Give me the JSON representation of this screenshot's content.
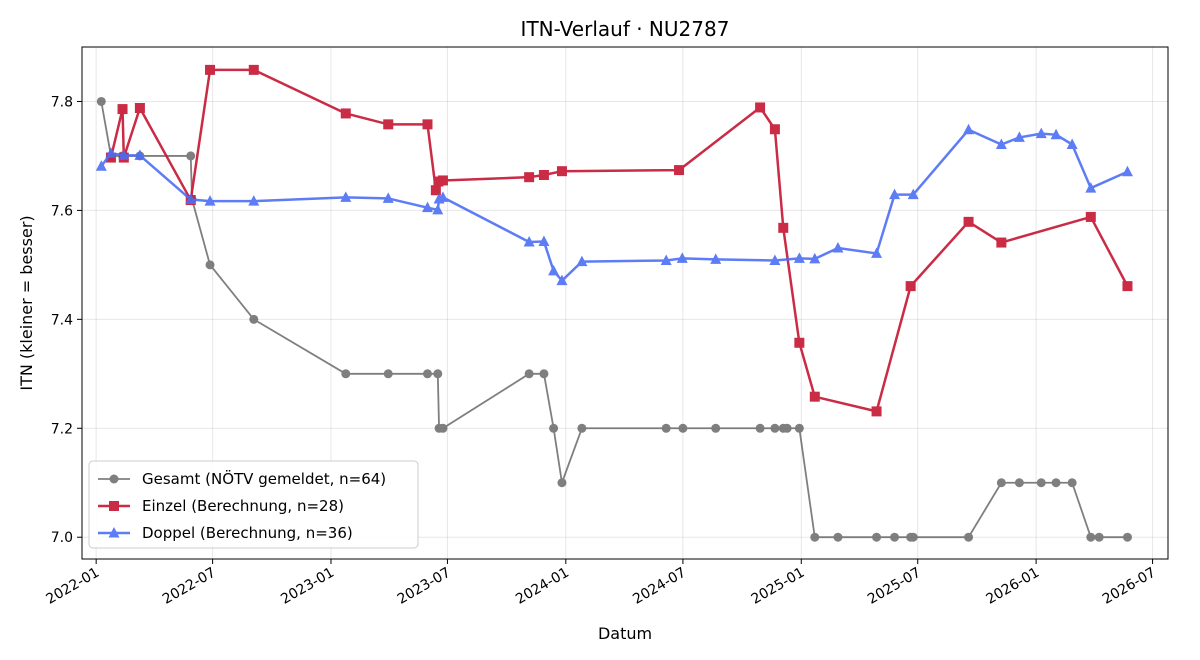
{
  "chart_data": {
    "type": "line",
    "title": "ITN-Verlauf · NU2787",
    "xlabel": "Datum",
    "ylabel": "ITN  (kleiner = besser)",
    "x_type": "date",
    "xlim": [
      "2021-12-10",
      "2026-07-25"
    ],
    "ylim": [
      6.96,
      7.9
    ],
    "x_ticks": [
      "2022-01",
      "2022-07",
      "2023-01",
      "2023-07",
      "2024-01",
      "2024-07",
      "2025-01",
      "2025-07",
      "2026-01",
      "2026-07"
    ],
    "y_ticks": [
      7.0,
      7.2,
      7.4,
      7.6,
      7.8
    ],
    "y_tick_labels": [
      "7.0",
      "7.2",
      "7.4",
      "7.6",
      "7.8"
    ],
    "grid": true,
    "legend_position": "lower-left",
    "series": [
      {
        "name": "Gesamt (NÖTV gemeldet, n=64)",
        "color": "#555555",
        "marker": "circle",
        "x": [
          "2022-01-09",
          "2022-01-24",
          "2022-02-11",
          "2022-02-13",
          "2022-03-10",
          "2022-05-28",
          "2022-05-30",
          "2022-06-27",
          "2022-09-03",
          "2023-01-24",
          "2023-03-31",
          "2023-05-31",
          "2023-06-16",
          "2023-06-18",
          "2023-06-24",
          "2023-11-05",
          "2023-11-28",
          "2023-12-13",
          "2023-12-26",
          "2024-01-26",
          "2024-06-05",
          "2024-07-01",
          "2024-08-21",
          "2024-10-29",
          "2024-11-21",
          "2024-12-04",
          "2024-12-10",
          "2024-12-29",
          "2025-01-22",
          "2025-02-27",
          "2025-04-28",
          "2025-05-26",
          "2025-06-20",
          "2025-06-24",
          "2025-09-18",
          "2025-11-08",
          "2025-12-06",
          "2026-01-09",
          "2026-02-01",
          "2026-02-26",
          "2026-03-27",
          "2026-04-09",
          "2026-05-23"
        ],
        "values": [
          7.8,
          7.7,
          7.7,
          7.7,
          7.7,
          7.7,
          7.62,
          7.5,
          7.4,
          7.3,
          7.3,
          7.3,
          7.3,
          7.2,
          7.2,
          7.3,
          7.3,
          7.2,
          7.1,
          7.2,
          7.2,
          7.2,
          7.2,
          7.2,
          7.2,
          7.2,
          7.2,
          7.2,
          7.0,
          7.0,
          7.0,
          7.0,
          7.0,
          7.0,
          7.0,
          7.1,
          7.1,
          7.1,
          7.1,
          7.1,
          7.0,
          7.0,
          7.0
        ]
      },
      {
        "name": "Einzel (Berechnung, n=28)",
        "color": "#c8203c",
        "marker": "square",
        "x": [
          "2022-01-24",
          "2022-02-11",
          "2022-02-13",
          "2022-03-10",
          "2022-05-28",
          "2022-06-27",
          "2022-09-03",
          "2023-01-24",
          "2023-03-31",
          "2023-05-31",
          "2023-06-13",
          "2023-06-17",
          "2023-06-24",
          "2023-11-05",
          "2023-11-28",
          "2023-12-26",
          "2024-06-25",
          "2024-10-29",
          "2024-11-21",
          "2024-12-04",
          "2024-12-29",
          "2025-01-22",
          "2025-04-28",
          "2025-06-20",
          "2025-09-18",
          "2025-11-08",
          "2026-03-27",
          "2026-05-23"
        ],
        "values": [
          7.697,
          7.786,
          7.697,
          7.788,
          7.619,
          7.858,
          7.858,
          7.778,
          7.758,
          7.758,
          7.637,
          7.653,
          7.655,
          7.661,
          7.665,
          7.672,
          7.674,
          7.789,
          7.749,
          7.568,
          7.357,
          7.258,
          7.231,
          7.461,
          7.579,
          7.541,
          7.588,
          7.461
        ]
      },
      {
        "name": "Doppel (Berechnung, n=36)",
        "color": "#4c6ef5",
        "marker": "triangle",
        "x": [
          "2022-01-09",
          "2022-01-24",
          "2022-02-13",
          "2022-03-10",
          "2022-05-28",
          "2022-06-27",
          "2022-09-03",
          "2023-01-24",
          "2023-03-31",
          "2023-05-31",
          "2023-06-16",
          "2023-06-18",
          "2023-06-24",
          "2023-11-05",
          "2023-11-28",
          "2023-12-13",
          "2023-12-26",
          "2024-01-26",
          "2024-06-05",
          "2024-06-30",
          "2024-08-21",
          "2024-11-21",
          "2024-12-29",
          "2025-01-22",
          "2025-02-27",
          "2025-04-28",
          "2025-05-26",
          "2025-06-24",
          "2025-09-18",
          "2025-11-08",
          "2025-12-06",
          "2026-01-09",
          "2026-02-01",
          "2026-02-26",
          "2026-03-27",
          "2026-05-23"
        ],
        "values": [
          7.681,
          7.705,
          7.701,
          7.701,
          7.62,
          7.617,
          7.617,
          7.624,
          7.622,
          7.605,
          7.601,
          7.621,
          7.624,
          7.542,
          7.543,
          7.489,
          7.471,
          7.506,
          7.508,
          7.512,
          7.51,
          7.508,
          7.512,
          7.511,
          7.531,
          7.521,
          7.629,
          7.629,
          7.748,
          7.721,
          7.734,
          7.741,
          7.739,
          7.721,
          7.641,
          7.671
        ]
      }
    ]
  }
}
